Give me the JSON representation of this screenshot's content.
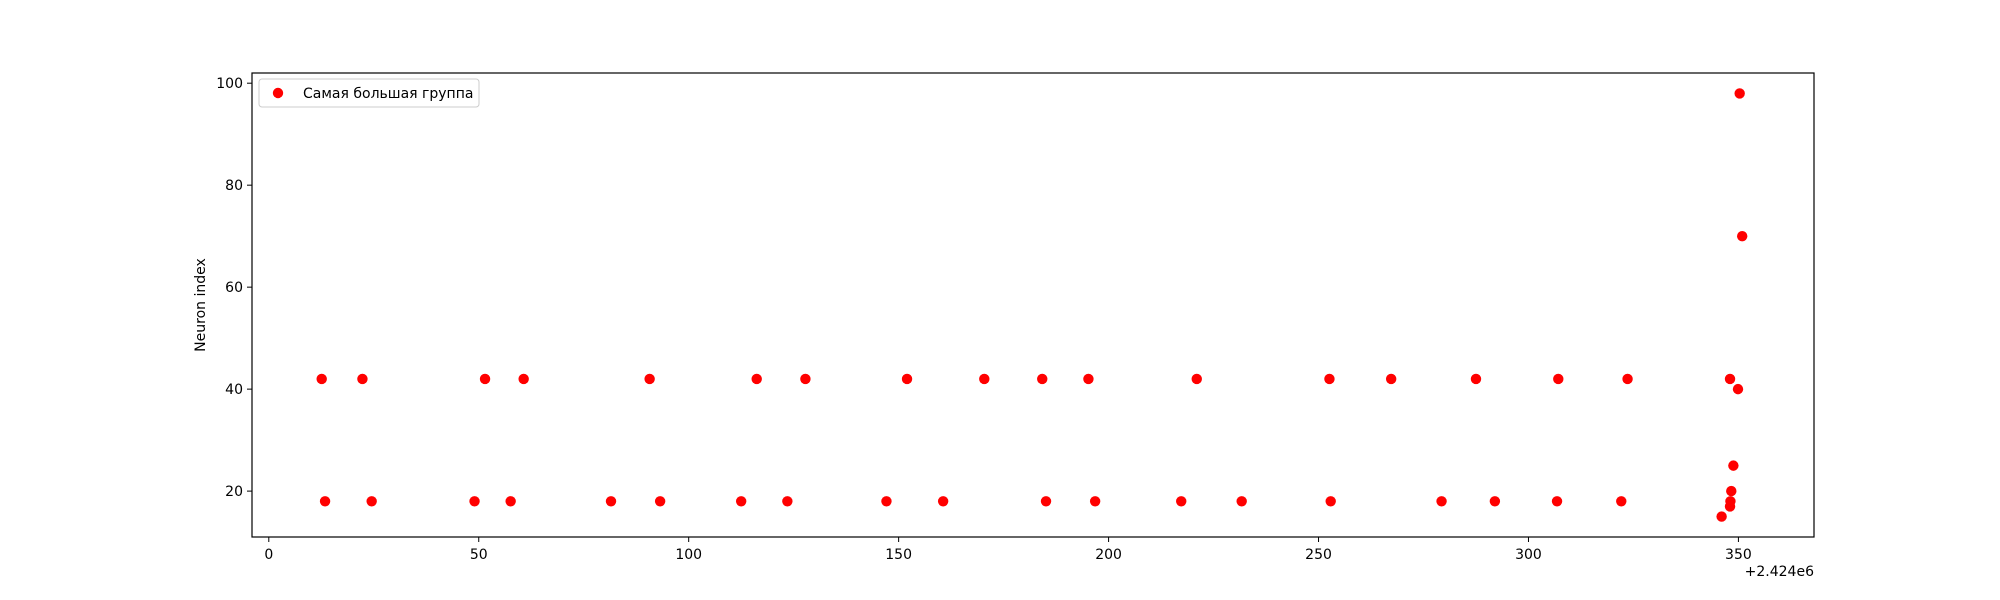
{
  "chart_data": {
    "type": "scatter",
    "title": "",
    "xlabel": "",
    "ylabel": "Neuron index",
    "x_offset_text": "+2.424e6",
    "xlim": [
      2423996,
      2424368
    ],
    "ylim": [
      11,
      102
    ],
    "x_ticks": [
      0,
      50,
      100,
      150,
      200,
      250,
      300,
      350
    ],
    "y_ticks": [
      20,
      40,
      60,
      80,
      100
    ],
    "grid": false,
    "legend_position": "upper-left",
    "series": [
      {
        "name": "Самая большая группа",
        "color": "#ff0000",
        "marker": "circle",
        "points": [
          {
            "x": 2424012.6,
            "y": 42
          },
          {
            "x": 2424013.4,
            "y": 18
          },
          {
            "x": 2424022.3,
            "y": 42
          },
          {
            "x": 2424024.5,
            "y": 18
          },
          {
            "x": 2424049.0,
            "y": 18
          },
          {
            "x": 2424051.5,
            "y": 42
          },
          {
            "x": 2424057.6,
            "y": 18
          },
          {
            "x": 2424060.7,
            "y": 42
          },
          {
            "x": 2424081.5,
            "y": 18
          },
          {
            "x": 2424090.7,
            "y": 42
          },
          {
            "x": 2424093.2,
            "y": 18
          },
          {
            "x": 2424112.5,
            "y": 18
          },
          {
            "x": 2424116.2,
            "y": 42
          },
          {
            "x": 2424123.5,
            "y": 18
          },
          {
            "x": 2424127.8,
            "y": 42
          },
          {
            "x": 2424147.1,
            "y": 18
          },
          {
            "x": 2424152.0,
            "y": 42
          },
          {
            "x": 2424160.6,
            "y": 18
          },
          {
            "x": 2424170.4,
            "y": 42
          },
          {
            "x": 2424184.2,
            "y": 42
          },
          {
            "x": 2424185.1,
            "y": 18
          },
          {
            "x": 2424195.2,
            "y": 42
          },
          {
            "x": 2424196.8,
            "y": 18
          },
          {
            "x": 2424217.3,
            "y": 18
          },
          {
            "x": 2424221.0,
            "y": 42
          },
          {
            "x": 2424231.7,
            "y": 18
          },
          {
            "x": 2424252.6,
            "y": 42
          },
          {
            "x": 2424252.9,
            "y": 18
          },
          {
            "x": 2424267.3,
            "y": 42
          },
          {
            "x": 2424279.3,
            "y": 18
          },
          {
            "x": 2424287.5,
            "y": 42
          },
          {
            "x": 2424292.0,
            "y": 18
          },
          {
            "x": 2424306.8,
            "y": 18
          },
          {
            "x": 2424307.1,
            "y": 42
          },
          {
            "x": 2424322.1,
            "y": 18
          },
          {
            "x": 2424323.6,
            "y": 42
          },
          {
            "x": 2424346.0,
            "y": 15
          },
          {
            "x": 2424348.0,
            "y": 42
          },
          {
            "x": 2424348.0,
            "y": 17
          },
          {
            "x": 2424348.1,
            "y": 18
          },
          {
            "x": 2424348.3,
            "y": 20
          },
          {
            "x": 2424348.8,
            "y": 25
          },
          {
            "x": 2424349.9,
            "y": 40
          },
          {
            "x": 2424350.3,
            "y": 98
          },
          {
            "x": 2424350.9,
            "y": 70
          }
        ]
      }
    ]
  }
}
